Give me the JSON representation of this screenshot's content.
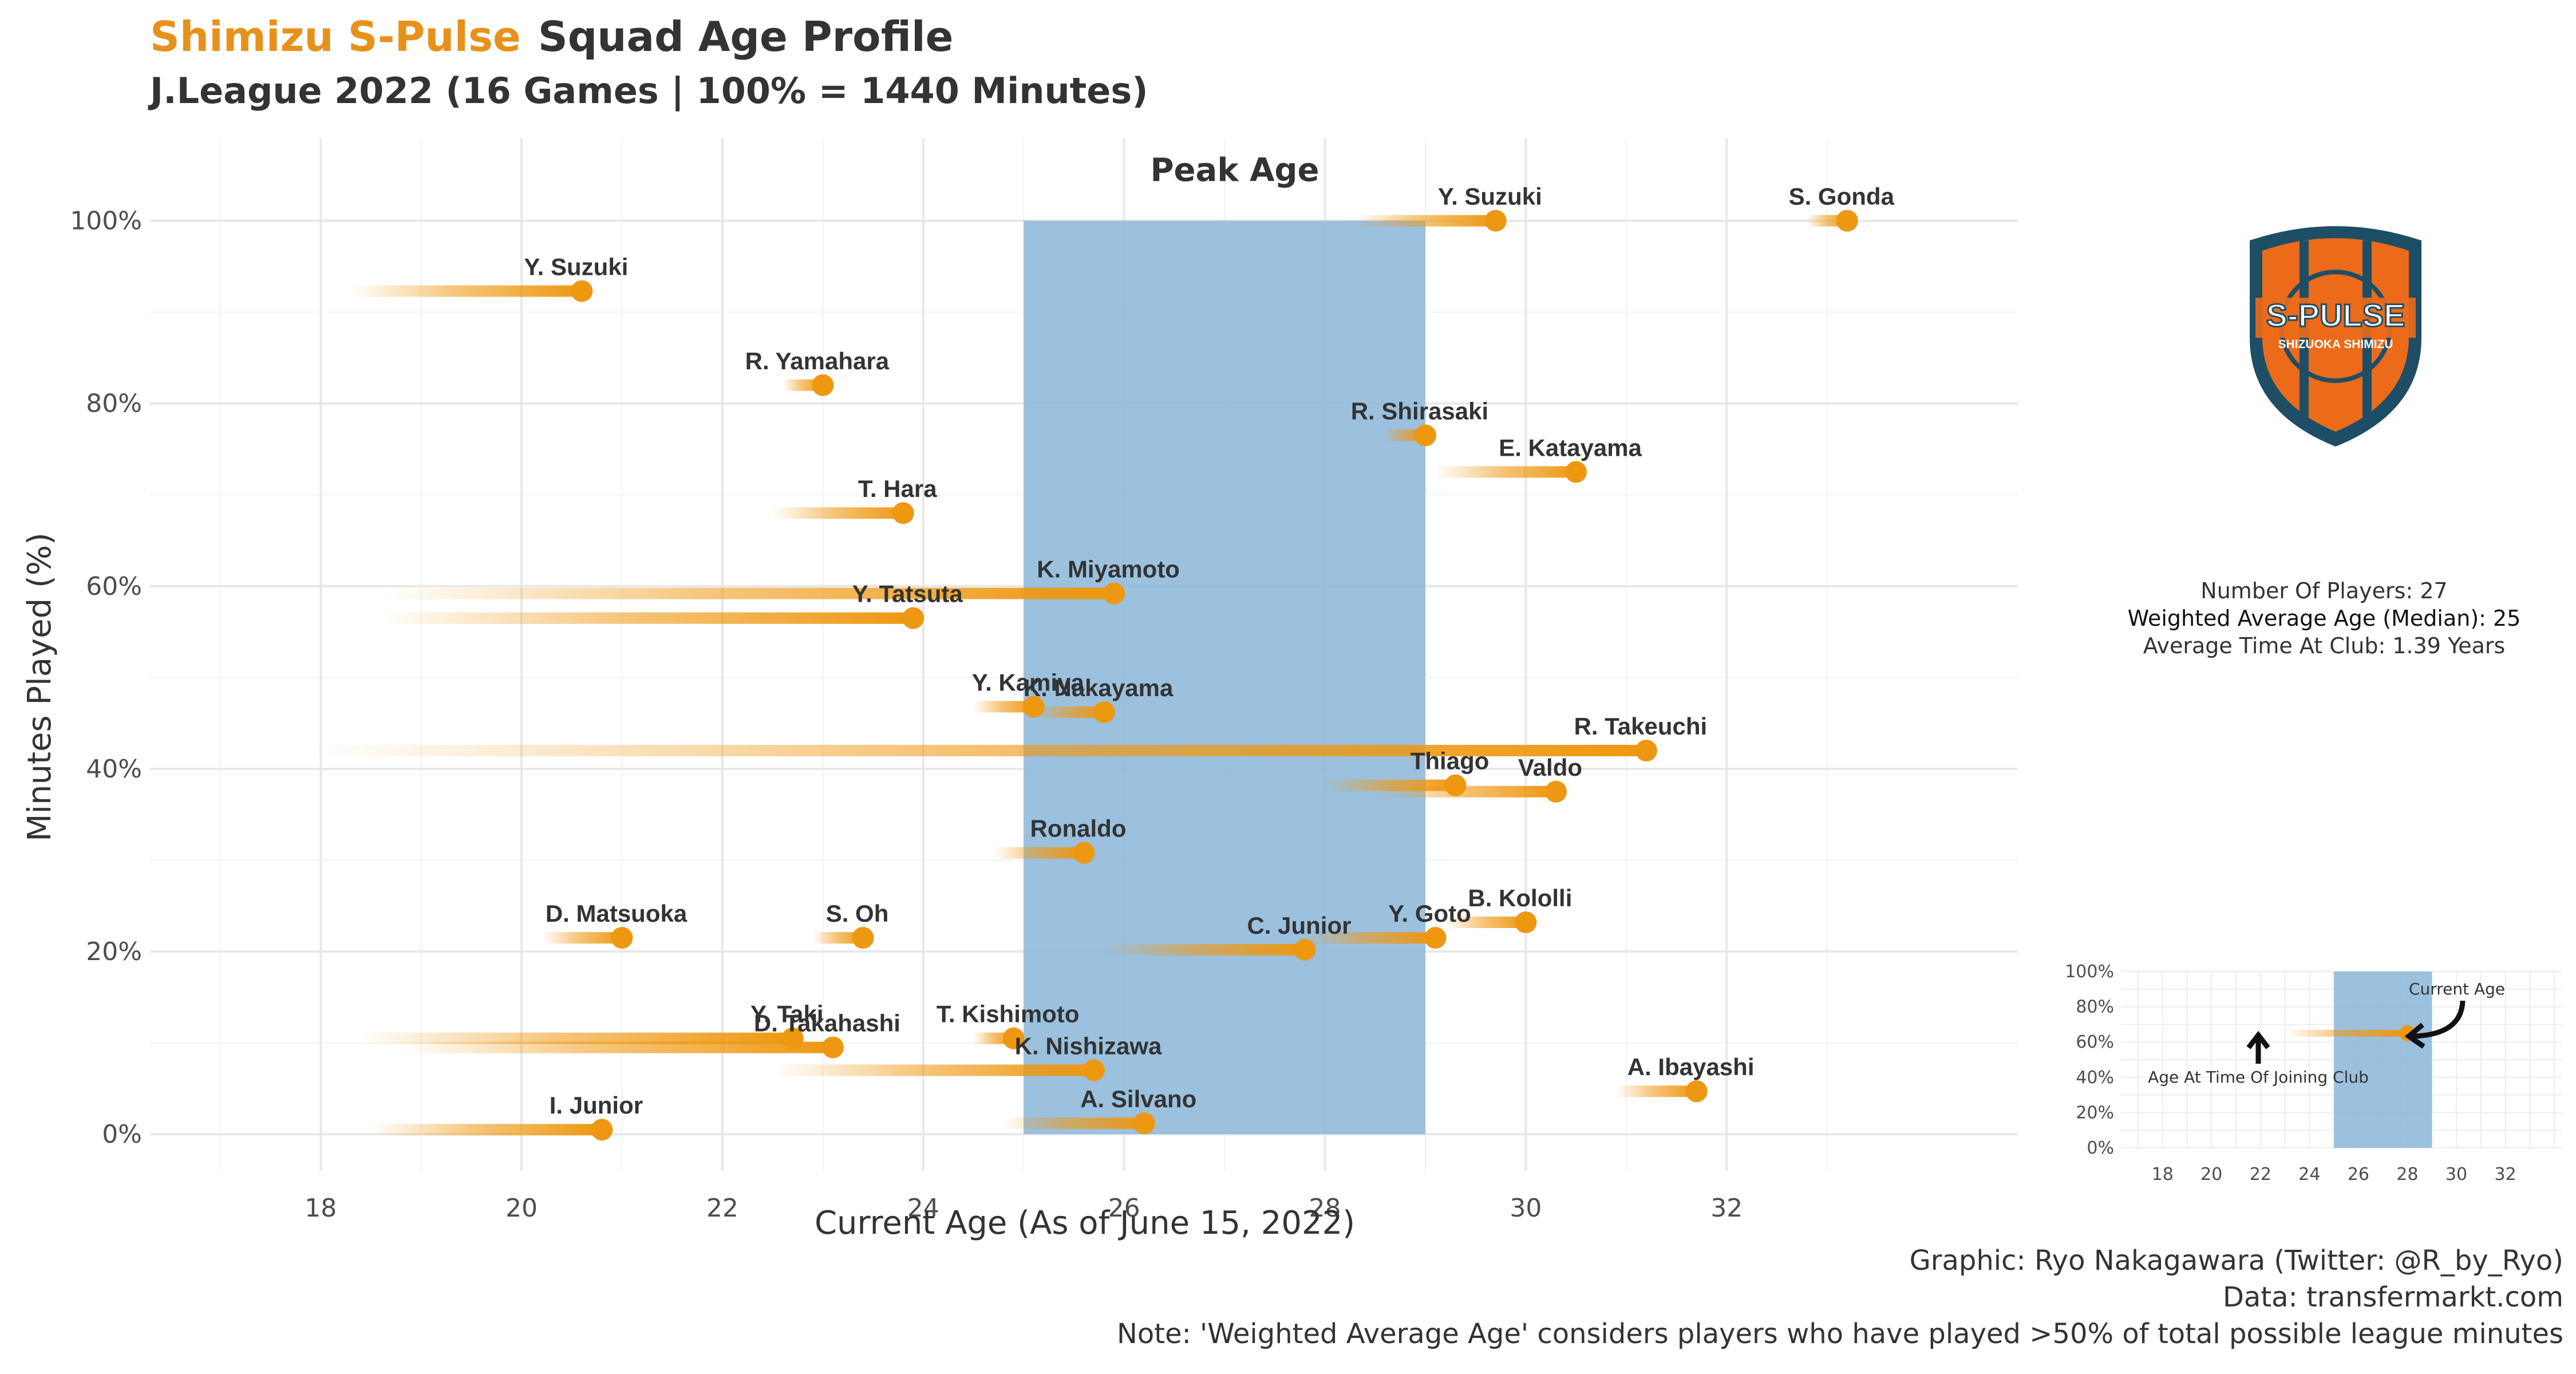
{
  "title": {
    "club": "Shimizu S-Pulse",
    "rest": "Squad Age Profile"
  },
  "subtitle": "J.League 2022 (16 Games | 100% = 1440 Minutes)",
  "chart_data": {
    "type": "scatter",
    "xlabel": "Current Age (As of June 15, 2022)",
    "ylabel": "Minutes Played (%)",
    "xlim": [
      16.3,
      34.9
    ],
    "ylim": [
      -0.04,
      1.09
    ],
    "x_ticks": [
      18,
      20,
      22,
      24,
      26,
      28,
      30,
      32
    ],
    "y_ticks": [
      0,
      0.2,
      0.4,
      0.6,
      0.8,
      1.0
    ],
    "y_tick_labels": [
      "0%",
      "20%",
      "40%",
      "60%",
      "80%",
      "100%"
    ],
    "peak_age": {
      "label": "Peak Age",
      "from": 25,
      "to": 29
    },
    "series": [
      {
        "values": [
          {
            "player": "Y. Suzuki",
            "age": 29.7,
            "minutes_pct": 1.0,
            "age_joined": 28.3
          },
          {
            "player": "S. Gonda",
            "age": 33.2,
            "minutes_pct": 1.0,
            "age_joined": 32.8
          },
          {
            "player": "Y. Suzuki",
            "age": 20.6,
            "minutes_pct": 0.923,
            "age_joined": 18.3
          },
          {
            "player": "R. Yamahara",
            "age": 23.0,
            "minutes_pct": 0.82,
            "age_joined": 22.6
          },
          {
            "player": "R. Shirasaki",
            "age": 29.0,
            "minutes_pct": 0.765,
            "age_joined": 28.6
          },
          {
            "player": "E. Katayama",
            "age": 30.5,
            "minutes_pct": 0.725,
            "age_joined": 29.1
          },
          {
            "player": "T. Hara",
            "age": 23.8,
            "minutes_pct": 0.68,
            "age_joined": 22.5
          },
          {
            "player": "K. Miyamoto",
            "age": 25.9,
            "minutes_pct": 0.592,
            "age_joined": 18.6
          },
          {
            "player": "Y. Tatsuta",
            "age": 23.9,
            "minutes_pct": 0.565,
            "age_joined": 18.6
          },
          {
            "player": "Y. Kamiya",
            "age": 25.1,
            "minutes_pct": 0.468,
            "age_joined": 24.5
          },
          {
            "player": "K. Nakayama",
            "age": 25.8,
            "minutes_pct": 0.462,
            "age_joined": 25.1
          },
          {
            "player": "R. Takeuchi",
            "age": 31.2,
            "minutes_pct": 0.42,
            "age_joined": 17.9
          },
          {
            "player": "Thiago",
            "age": 29.3,
            "minutes_pct": 0.382,
            "age_joined": 28.0
          },
          {
            "player": "Valdo",
            "age": 30.3,
            "minutes_pct": 0.375,
            "age_joined": 28.5
          },
          {
            "player": "Ronaldo",
            "age": 25.6,
            "minutes_pct": 0.308,
            "age_joined": 24.7
          },
          {
            "player": "D. Matsuoka",
            "age": 21.0,
            "minutes_pct": 0.215,
            "age_joined": 20.2
          },
          {
            "player": "S. Oh",
            "age": 23.4,
            "minutes_pct": 0.215,
            "age_joined": 22.9
          },
          {
            "player": "C. Junior",
            "age": 27.8,
            "minutes_pct": 0.202,
            "age_joined": 25.8
          },
          {
            "player": "Y. Goto",
            "age": 29.1,
            "minutes_pct": 0.215,
            "age_joined": 27.8
          },
          {
            "player": "B. Kololli",
            "age": 30.0,
            "minutes_pct": 0.232,
            "age_joined": 29.2
          },
          {
            "player": "Y. Taki",
            "age": 22.7,
            "minutes_pct": 0.105,
            "age_joined": 18.4
          },
          {
            "player": "T. Kishimoto",
            "age": 24.9,
            "minutes_pct": 0.105,
            "age_joined": 24.5
          },
          {
            "player": "D. Takahashi",
            "age": 23.1,
            "minutes_pct": 0.095,
            "age_joined": 18.8
          },
          {
            "player": "K. Nishizawa",
            "age": 25.7,
            "minutes_pct": 0.07,
            "age_joined": 22.5
          },
          {
            "player": "A. Ibayashi",
            "age": 31.7,
            "minutes_pct": 0.047,
            "age_joined": 30.9
          },
          {
            "player": "I. Junior",
            "age": 20.8,
            "minutes_pct": 0.005,
            "age_joined": 18.5
          },
          {
            "player": "A. Silvano",
            "age": 26.2,
            "minutes_pct": 0.012,
            "age_joined": 24.8
          }
        ]
      }
    ],
    "colors": {
      "point": "#EE9710",
      "segment": "#EE9710",
      "peak_band": "#8DB8DA",
      "grid": "#E8E8E8"
    }
  },
  "stats": {
    "players": "Number Of Players: 27",
    "median_age": "Weighted Average Age (Median): 25",
    "time_at_club": "Average Time At Club: 1.39 Years"
  },
  "inset": {
    "x_ticks": [
      "18",
      "20",
      "22",
      "24",
      "26",
      "28",
      "30",
      "32"
    ],
    "y_ticks": [
      "0%",
      "20%",
      "40%",
      "60%",
      "80%",
      "100%"
    ],
    "current_age_label": "Current Age",
    "joined_label": "Age At Time Of Joining Club",
    "example": {
      "age_joined": 23.0,
      "age": 28.0,
      "minutes_pct": 0.65
    }
  },
  "logo": {
    "text_main": "S-PULSE",
    "text_sub": "SHIZUOKA SHIMIZU",
    "colors": {
      "blue": "#1D4E66",
      "orange": "#EC6B1A",
      "white": "#FFFFFF"
    }
  },
  "caption": {
    "line1": "Graphic: Ryo Nakagawara (Twitter: @R_by_Ryo)",
    "line2": "Data: transfermarkt.com",
    "line3": "Note: 'Weighted Average Age' considers players who have played >50% of total possible league minutes"
  }
}
